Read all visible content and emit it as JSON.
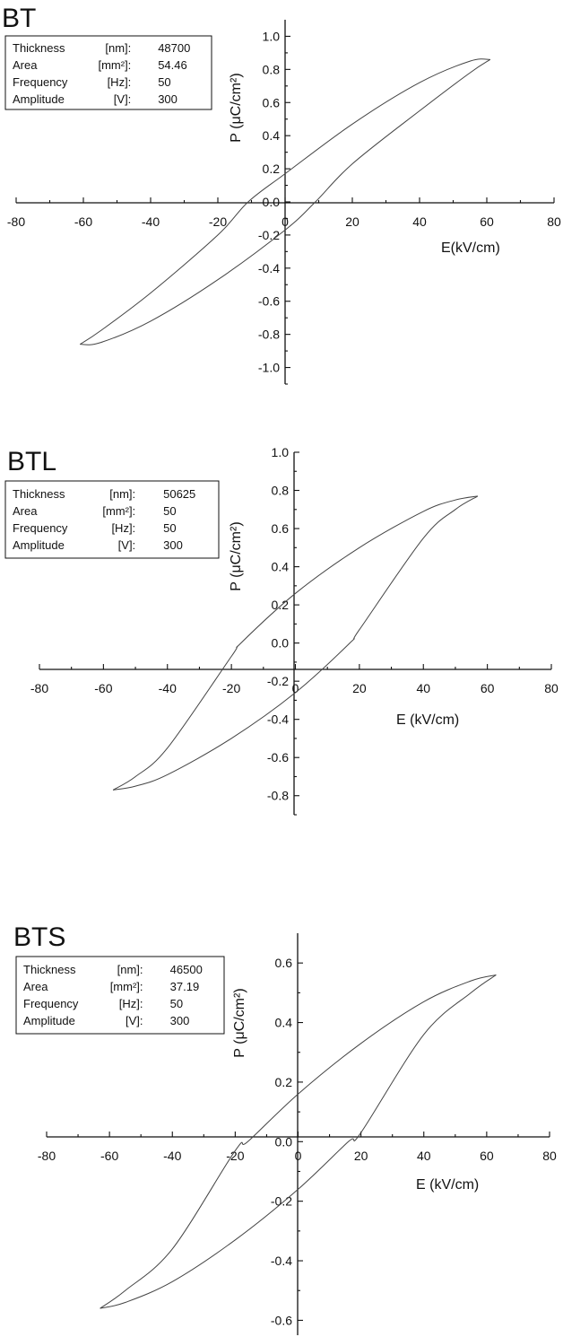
{
  "chart_data": [
    {
      "type": "line",
      "title": "BT",
      "xlabel": "E(kV/cm)",
      "ylabel": "P (μC/cm²)",
      "xlim": [
        -80,
        80
      ],
      "ylim": [
        -1.1,
        1.1
      ],
      "xticks": [
        "-80",
        "-60",
        "-40",
        "-20",
        "0",
        "20",
        "40",
        "60",
        "80"
      ],
      "yticks": [
        "1.0",
        "0.8",
        "0.6",
        "0.4",
        "0.2",
        "0.0",
        "-0.2",
        "-0.4",
        "-0.6",
        "-0.8",
        "-1.0"
      ],
      "grid": false,
      "info": [
        {
          "name": "Thickness",
          "unit": "[nm]:",
          "value": "48700"
        },
        {
          "name": "Area",
          "unit": "[mm²]:",
          "value": "54.46"
        },
        {
          "name": "Frequency",
          "unit": "[Hz]:",
          "value": "50"
        },
        {
          "name": "Amplitude",
          "unit": "[V]:",
          "value": "300"
        }
      ],
      "series": [
        {
          "x": [
            61,
            55,
            40,
            20,
            9,
            0,
            -20,
            -40,
            -55,
            -61
          ],
          "y": [
            0.86,
            0.78,
            0.55,
            0.23,
            0.0,
            -0.17,
            -0.47,
            -0.72,
            -0.85,
            -0.86
          ]
        },
        {
          "x": [
            -61,
            -55,
            -40,
            -20,
            -11,
            0,
            20,
            40,
            55,
            61
          ],
          "y": [
            -0.86,
            -0.78,
            -0.55,
            -0.2,
            0.0,
            0.17,
            0.47,
            0.72,
            0.85,
            0.86
          ]
        }
      ]
    },
    {
      "type": "line",
      "title": "BTL",
      "xlabel": "E (kV/cm)",
      "ylabel": "P (μC/cm²)",
      "xlim": [
        -80,
        80
      ],
      "ylim": [
        -0.9,
        1.0
      ],
      "xticks": [
        "-80",
        "-60",
        "-40",
        "-20",
        "0",
        "20",
        "40",
        "60",
        "80"
      ],
      "yticks": [
        "1.0",
        "0.8",
        "0.6",
        "0.4",
        "0.2",
        "0.0",
        "-0.2",
        "-0.4",
        "-0.6",
        "-0.8"
      ],
      "grid": false,
      "info": [
        {
          "name": "Thickness",
          "unit": "[nm]:",
          "value": "50625"
        },
        {
          "name": "Area",
          "unit": "[mm²]:",
          "value": "50"
        },
        {
          "name": "Frequency",
          "unit": "[Hz]:",
          "value": "50"
        },
        {
          "name": "Amplitude",
          "unit": "[V]:",
          "value": "300"
        }
      ],
      "series": [
        {
          "x": [
            57,
            50,
            40,
            20,
            17,
            0,
            -20,
            -40,
            -50,
            -57
          ],
          "y": [
            0.77,
            0.7,
            0.55,
            0.07,
            0.0,
            -0.26,
            -0.5,
            -0.69,
            -0.75,
            -0.77
          ]
        },
        {
          "x": [
            -57,
            -50,
            -40,
            -20,
            -17,
            0,
            20,
            40,
            50,
            57
          ],
          "y": [
            -0.77,
            -0.7,
            -0.55,
            -0.07,
            0.0,
            0.26,
            0.5,
            0.69,
            0.75,
            0.77
          ]
        }
      ]
    },
    {
      "type": "line",
      "title": "BTS",
      "xlabel": "E (kV/cm)",
      "ylabel": "P (μC/cm²)",
      "xlim": [
        -80,
        80
      ],
      "ylim": [
        -0.65,
        0.7
      ],
      "xticks": [
        "-80",
        "-60",
        "-40",
        "-20",
        "0",
        "20",
        "40",
        "60",
        "80"
      ],
      "yticks": [
        "0.6",
        "0.4",
        "0.2",
        "0.0",
        "-0.2",
        "-0.4",
        "-0.6"
      ],
      "grid": false,
      "info": [
        {
          "name": "Thickness",
          "unit": "[nm]:",
          "value": "46500"
        },
        {
          "name": "Area",
          "unit": "[mm²]:",
          "value": "37.19"
        },
        {
          "name": "Frequency",
          "unit": "[Hz]:",
          "value": "50"
        },
        {
          "name": "Amplitude",
          "unit": "[V]:",
          "value": "300"
        }
      ],
      "series": [
        {
          "x": [
            63,
            55,
            40,
            20,
            16,
            0,
            -20,
            -40,
            -55,
            -63
          ],
          "y": [
            0.56,
            0.5,
            0.36,
            0.03,
            0.0,
            -0.16,
            -0.33,
            -0.47,
            -0.54,
            -0.56
          ]
        },
        {
          "x": [
            -63,
            -55,
            -40,
            -20,
            -16,
            0,
            20,
            40,
            55,
            63
          ],
          "y": [
            -0.56,
            -0.5,
            -0.36,
            -0.03,
            0.0,
            0.16,
            0.33,
            0.47,
            0.54,
            0.56
          ]
        }
      ]
    }
  ]
}
